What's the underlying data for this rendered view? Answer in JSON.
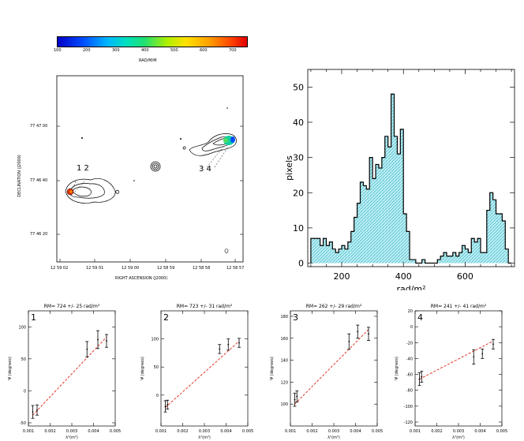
{
  "colorbar": {
    "label": "RAD/M/M",
    "ticks": [
      "100",
      "200",
      "300",
      "400",
      "500",
      "600",
      "700"
    ],
    "range": [
      100,
      750
    ]
  },
  "map": {
    "ylabel": "DECLINATION (J2000)",
    "xlabel": "RIGHT ASCENSION (J2000)",
    "y_ticks": [
      "77 47 00",
      "77 46 40",
      "77 46 20"
    ],
    "x_ticks": [
      "12 59 02",
      "12 59 01",
      "12 59 00",
      "12 58 59",
      "12 58 58",
      "12 58 57"
    ],
    "labels": {
      "left": "1 2",
      "right": "3 4"
    }
  },
  "chart_data": [
    {
      "type": "bar",
      "title": "",
      "xlabel": "rad/m²",
      "ylabel": "pixels",
      "xlim": [
        90,
        760
      ],
      "ylim": [
        -1,
        55
      ],
      "x_ticks": [
        200,
        400,
        600
      ],
      "y_ticks": [
        0,
        10,
        20,
        30,
        40,
        50
      ],
      "bin_width": 10,
      "bins_start": [
        100,
        110,
        120,
        130,
        140,
        150,
        160,
        170,
        180,
        190,
        200,
        210,
        220,
        230,
        240,
        250,
        260,
        270,
        280,
        290,
        300,
        310,
        320,
        330,
        340,
        350,
        360,
        370,
        380,
        390,
        400,
        410,
        420,
        430,
        440,
        450,
        460,
        470,
        480,
        490,
        500,
        510,
        520,
        530,
        540,
        550,
        560,
        570,
        580,
        590,
        600,
        610,
        620,
        630,
        640,
        650,
        660,
        670,
        680,
        690,
        700,
        710,
        720,
        730,
        740
      ],
      "values": [
        7,
        7,
        7,
        5,
        7,
        5,
        6,
        4,
        3,
        4,
        5,
        4,
        6,
        9,
        13,
        17,
        23,
        22,
        21,
        30,
        24,
        28,
        27,
        30,
        36,
        33,
        48,
        36,
        31,
        38,
        14,
        9,
        1,
        1,
        0,
        0,
        1,
        0,
        0,
        0,
        0,
        1,
        2,
        3,
        2,
        2,
        3,
        2,
        3,
        5,
        4,
        3,
        7,
        6,
        7,
        3,
        3,
        15,
        20,
        18,
        14,
        14,
        12,
        4,
        0
      ]
    },
    {
      "type": "scatter",
      "panel_label": "1",
      "title": "RM= 724 +/- 25 rad/m²",
      "xlabel": "λ²(m²)",
      "ylabel": "Ψ (degrees)",
      "xlim": [
        0.001,
        0.005
      ],
      "ylim": [
        -55,
        125
      ],
      "x_ticks": [
        "0.001",
        "0.002",
        "0.003",
        "0.004",
        "0.005"
      ],
      "y_ticks": [
        "-50",
        "0",
        "50",
        "100"
      ],
      "points": [
        {
          "x": 0.0012,
          "y": -33,
          "err": 10
        },
        {
          "x": 0.0014,
          "y": -30,
          "err": 8
        },
        {
          "x": 0.0037,
          "y": 65,
          "err": 12
        },
        {
          "x": 0.0042,
          "y": 80,
          "err": 14
        },
        {
          "x": 0.0046,
          "y": 78,
          "err": 10
        }
      ],
      "fit": {
        "x": [
          0.0012,
          0.0046
        ],
        "y": [
          -38,
          84
        ]
      }
    },
    {
      "type": "scatter",
      "panel_label": "2",
      "title": "RM= 723 +/- 31 rad/m²",
      "xlabel": "λ²(m²)",
      "ylabel": "Ψ (degrees)",
      "xlim": [
        0.001,
        0.005
      ],
      "ylim": [
        -55,
        150
      ],
      "x_ticks": [
        "0.001",
        "0.002",
        "0.003",
        "0.004",
        "0.005"
      ],
      "y_ticks": [
        "0",
        "50",
        "100"
      ],
      "points": [
        {
          "x": 0.0012,
          "y": -20,
          "err": 10
        },
        {
          "x": 0.0013,
          "y": -17,
          "err": 8
        },
        {
          "x": 0.0037,
          "y": 82,
          "err": 8
        },
        {
          "x": 0.0041,
          "y": 90,
          "err": 10
        },
        {
          "x": 0.0046,
          "y": 93,
          "err": 8
        }
      ],
      "fit": {
        "x": [
          0.0012,
          0.0046
        ],
        "y": [
          -22,
          96
        ]
      }
    },
    {
      "type": "scatter",
      "panel_label": "3",
      "title": "RM= 262 +/- 29 rad/m²",
      "xlabel": "λ²(m²)",
      "ylabel": "Ψ (degrees)",
      "xlim": [
        0.001,
        0.005
      ],
      "ylim": [
        80,
        185
      ],
      "x_ticks": [
        "0.001",
        "0.002",
        "0.003",
        "0.004",
        "0.005"
      ],
      "y_ticks": [
        "100",
        "120",
        "140",
        "160",
        "180"
      ],
      "points": [
        {
          "x": 0.0012,
          "y": 104,
          "err": 6
        },
        {
          "x": 0.0013,
          "y": 107,
          "err": 5
        },
        {
          "x": 0.0037,
          "y": 157,
          "err": 7
        },
        {
          "x": 0.0041,
          "y": 166,
          "err": 6
        },
        {
          "x": 0.0046,
          "y": 164,
          "err": 6
        }
      ],
      "fit": {
        "x": [
          0.0012,
          0.0046
        ],
        "y": [
          100,
          168
        ]
      }
    },
    {
      "type": "scatter",
      "panel_label": "4",
      "title": "RM= 241 +/- 41 rad/m²",
      "xlabel": "λ²(m²)",
      "ylabel": "Ψ (degrees)",
      "xlim": [
        0.001,
        0.005
      ],
      "ylim": [
        -125,
        20
      ],
      "x_ticks": [
        "0.001",
        "0.002",
        "0.003",
        "0.004",
        "0.005"
      ],
      "y_ticks": [
        "-120",
        "-100",
        "-80",
        "-60",
        "-40",
        "-20",
        "0",
        "20"
      ],
      "points": [
        {
          "x": 0.0012,
          "y": -66,
          "err": 8
        },
        {
          "x": 0.0013,
          "y": -63,
          "err": 7
        },
        {
          "x": 0.0037,
          "y": -38,
          "err": 9
        },
        {
          "x": 0.0041,
          "y": -34,
          "err": 6
        },
        {
          "x": 0.0046,
          "y": -22,
          "err": 6
        }
      ],
      "fit": {
        "x": [
          0.0012,
          0.0046
        ],
        "y": [
          -66,
          -18
        ]
      }
    }
  ]
}
